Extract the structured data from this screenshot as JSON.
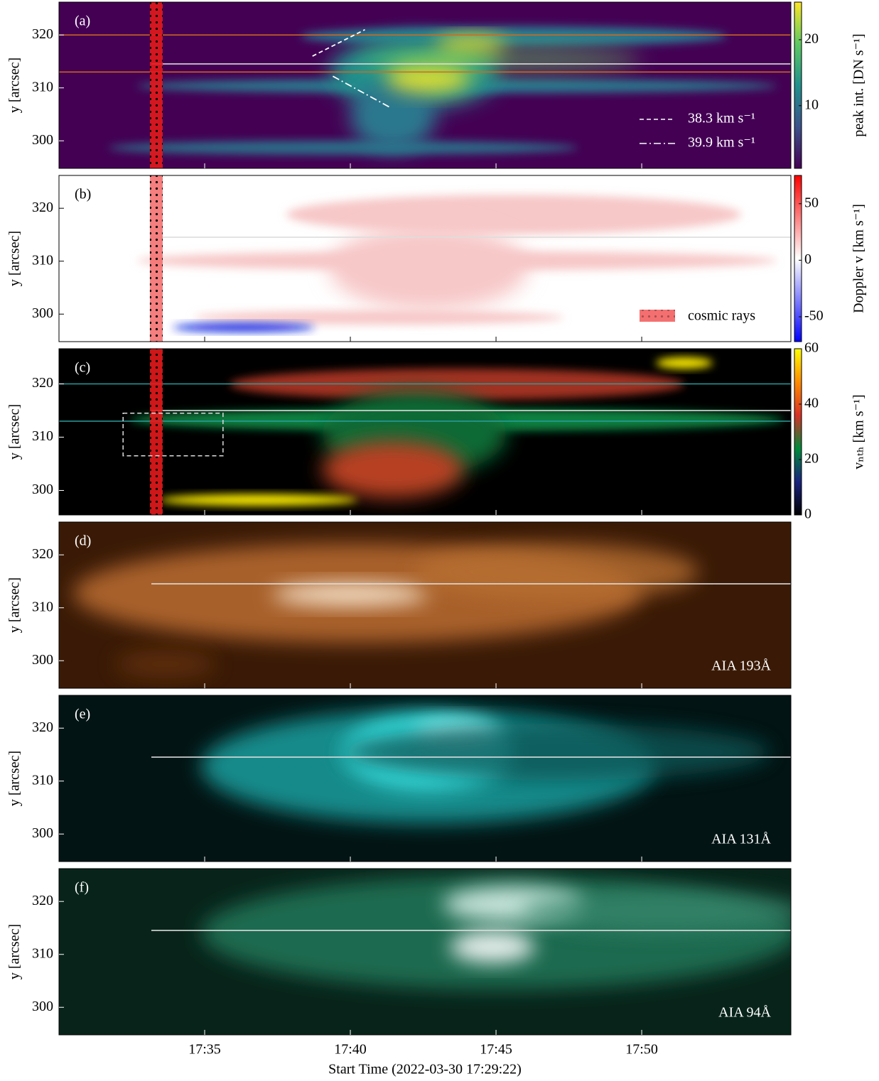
{
  "chart_data": [
    {
      "type": "heatmap",
      "panel_label": "(a)",
      "ylabel": "y [arcsec]",
      "background": "#440154",
      "xlim": [
        0,
        25.12
      ],
      "ylim": [
        294.8,
        326.2
      ],
      "yticks": [
        300,
        310,
        320
      ],
      "hlines": {
        "values": [
          320,
          313
        ],
        "color": "#d2691e"
      },
      "cosmic_rays": {
        "xlim": [
          3.12,
          3.56
        ],
        "color": "#e31a1c"
      },
      "speed_lines": [
        {
          "name": "38.3 km s⁻¹",
          "style": "dashed",
          "x": [
            8.7,
            10.5
          ],
          "y": [
            316,
            321
          ]
        },
        {
          "name": "39.9 km s⁻¹",
          "style": "dashdot",
          "x": [
            9.4,
            11.4
          ],
          "y": [
            312.2,
            306.2
          ]
        }
      ],
      "colorbar": {
        "label": "peak int. [DN s⁻¹]",
        "lim": [
          0.5,
          25.7
        ],
        "ticks": [
          10,
          20
        ],
        "colors": [
          "#440154",
          "#3b528b",
          "#21918c",
          "#5ec962",
          "#fde725"
        ]
      }
    },
    {
      "type": "heatmap",
      "panel_label": "(b)",
      "ylabel": "y [arcsec]",
      "background": "#ffffff",
      "xlim": [
        0,
        25.12
      ],
      "ylim": [
        294.8,
        326.2
      ],
      "yticks": [
        300,
        310,
        320
      ],
      "cosmic_rays": {
        "xlim": [
          3.12,
          3.56
        ],
        "color": "#f47070",
        "label": "cosmic rays"
      },
      "colorbar": {
        "label": "Doppler v [km s⁻¹]",
        "lim": [
          -72,
          75
        ],
        "ticks": [
          -50,
          0,
          50
        ],
        "colors": [
          "#0000ff",
          "#ffffff",
          "#ff0000"
        ]
      }
    },
    {
      "type": "heatmap",
      "panel_label": "(c)",
      "ylabel": "y [arcsec]",
      "background": "#000000",
      "xlim": [
        0,
        25.12
      ],
      "ylim": [
        295.4,
        326.6
      ],
      "yticks": [
        300,
        310,
        320
      ],
      "hlines": {
        "values": [
          320,
          313
        ],
        "color": "#2a9d9d"
      },
      "cosmic_rays": {
        "xlim": [
          3.12,
          3.56
        ],
        "color": "#e31a1c"
      },
      "box": {
        "x": [
          2.2,
          5.63
        ],
        "y": [
          306.5,
          314.5
        ]
      },
      "colorbar": {
        "label": "vₙₜₕ [km s⁻¹]",
        "lim": [
          0,
          60
        ],
        "ticks": [
          0,
          20,
          40,
          60
        ],
        "colors": [
          "#000000",
          "#1a237e",
          "#008a3a",
          "#d73027",
          "#ff8c00",
          "#ffff00"
        ]
      }
    },
    {
      "type": "heatmap",
      "panel_label": "(d)",
      "ylabel": "y [arcsec]",
      "background": "#3a1a06",
      "xlim": [
        0,
        25.12
      ],
      "ylim": [
        294.8,
        326.2
      ],
      "yticks": [
        300,
        310,
        320
      ],
      "annotation": "AIA 193Å"
    },
    {
      "type": "heatmap",
      "panel_label": "(e)",
      "ylabel": "y [arcsec]",
      "background": "#031414",
      "xlim": [
        0,
        25.12
      ],
      "ylim": [
        294.8,
        326.2
      ],
      "yticks": [
        300,
        310,
        320
      ],
      "annotation": "AIA 131Å"
    },
    {
      "type": "heatmap",
      "panel_label": "(f)",
      "ylabel": "y [arcsec]",
      "background": "#08241a",
      "xlim": [
        0,
        25.12
      ],
      "ylim": [
        294.8,
        326.2
      ],
      "yticks": [
        300,
        310,
        320
      ],
      "annotation": "AIA 94Å",
      "xlabel": "Start Time (2022-03-30 17:29:22)",
      "xticks": [
        {
          "value": 5,
          "label": "17:35"
        },
        {
          "value": 10,
          "label": "17:40"
        },
        {
          "value": 15,
          "label": "17:45"
        },
        {
          "value": 20,
          "label": "17:50"
        }
      ]
    }
  ]
}
